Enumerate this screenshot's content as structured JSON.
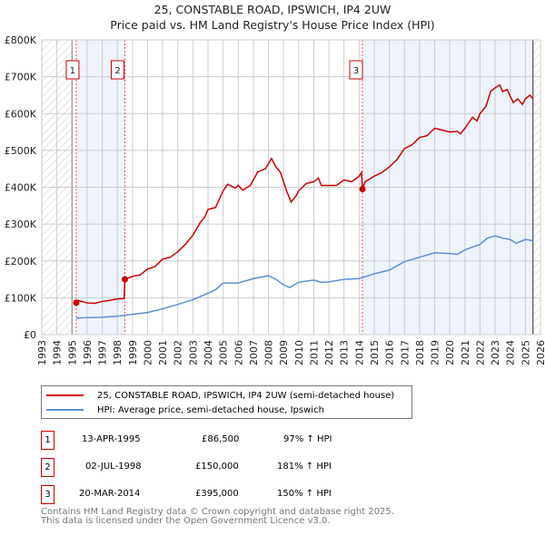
{
  "title": "25, CONSTABLE ROAD, IPSWICH, IP4 2UW",
  "subtitle": "Price paid vs. HM Land Registry's House Price Index (HPI)",
  "chart_data": {
    "type": "line",
    "title": "25, CONSTABLE ROAD, IPSWICH, IP4 2UW",
    "subtitle": "Price paid vs. HM Land Registry's House Price Index (HPI)",
    "xlim": [
      1993,
      2026
    ],
    "ylim": [
      0,
      800000
    ],
    "x_ticks": [
      "1993",
      "1994",
      "1995",
      "1996",
      "1997",
      "1998",
      "1999",
      "2000",
      "2001",
      "2002",
      "2003",
      "2004",
      "2005",
      "2006",
      "2007",
      "2008",
      "2009",
      "2010",
      "2011",
      "2012",
      "2013",
      "2014",
      "2015",
      "2016",
      "2017",
      "2018",
      "2019",
      "2020",
      "2021",
      "2022",
      "2023",
      "2024",
      "2025",
      "2026"
    ],
    "y_ticks": [
      {
        "v": 0,
        "label": "£0"
      },
      {
        "v": 100000,
        "label": "£100K"
      },
      {
        "v": 200000,
        "label": "£200K"
      },
      {
        "v": 300000,
        "label": "£300K"
      },
      {
        "v": 400000,
        "label": "£400K"
      },
      {
        "v": 500000,
        "label": "£500K"
      },
      {
        "v": 600000,
        "label": "£600K"
      },
      {
        "v": 700000,
        "label": "£700K"
      },
      {
        "v": 800000,
        "label": "£800K"
      }
    ],
    "grid": true,
    "hatched_ranges": [
      [
        1993,
        1995
      ],
      [
        2025.5,
        2026
      ]
    ],
    "shaded_ranges": [
      [
        1995.28,
        1998.5
      ],
      [
        2014.22,
        2025.5
      ]
    ],
    "series": [
      {
        "name": "25, CONSTABLE ROAD, IPSWICH, IP4 2UW (semi-detached house)",
        "color": "#cc0000",
        "x": [
          1995.28,
          1995.4,
          1996,
          1996.5,
          1997,
          1997.5,
          1998,
          1998.45,
          1998.5,
          1999,
          1999.5,
          2000,
          2000.5,
          2001,
          2001.5,
          2002,
          2002.5,
          2003,
          2003.5,
          2003.8,
          2004,
          2004.5,
          2005,
          2005.3,
          2005.8,
          2006,
          2006.3,
          2006.8,
          2007,
          2007.3,
          2007.8,
          2008.2,
          2008.5,
          2008.8,
          2009.2,
          2009.5,
          2009.8,
          2010,
          2010.5,
          2011,
          2011.3,
          2011.5,
          2012,
          2012.5,
          2013,
          2013.5,
          2014,
          2014.15,
          2014.22,
          2014.4,
          2015,
          2015.5,
          2016,
          2016.5,
          2017,
          2017.5,
          2018,
          2018.5,
          2019,
          2019.5,
          2020,
          2020.5,
          2020.7,
          2021,
          2021.5,
          2021.8,
          2022,
          2022.4,
          2022.7,
          2023,
          2023.3,
          2023.5,
          2023.8,
          2024.2,
          2024.5,
          2024.8,
          2025,
          2025.3,
          2025.5
        ],
        "y": [
          86500,
          93000,
          86000,
          85000,
          90000,
          93000,
          97000,
          98000,
          150000,
          158000,
          162000,
          178000,
          185000,
          205000,
          210000,
          225000,
          245000,
          270000,
          305000,
          320000,
          340000,
          345000,
          390000,
          408000,
          398000,
          405000,
          392000,
          405000,
          420000,
          442000,
          450000,
          478000,
          455000,
          440000,
          390000,
          360000,
          375000,
          390000,
          410000,
          415000,
          425000,
          405000,
          405000,
          405000,
          420000,
          415000,
          430000,
          440000,
          395000,
          415000,
          430000,
          440000,
          455000,
          475000,
          505000,
          515000,
          535000,
          540000,
          560000,
          555000,
          550000,
          552000,
          545000,
          560000,
          590000,
          580000,
          600000,
          620000,
          660000,
          670000,
          678000,
          660000,
          665000,
          630000,
          640000,
          625000,
          640000,
          650000,
          640000
        ]
      },
      {
        "name": "HPI: Average price, semi-detached house, Ipswich",
        "color": "#5b8fd4",
        "x": [
          1995.28,
          1996,
          1997,
          1998,
          1999,
          2000,
          2001,
          2002,
          2003,
          2004,
          2004.5,
          2005,
          2006,
          2007,
          2008,
          2008.5,
          2009,
          2009.4,
          2010,
          2011,
          2011.5,
          2012,
          2013,
          2014,
          2015,
          2016,
          2017,
          2018,
          2019,
          2020,
          2020.5,
          2021,
          2022,
          2022.5,
          2023,
          2023.5,
          2024,
          2024.4,
          2025,
          2025.5
        ],
        "y": [
          45000,
          46000,
          47000,
          50000,
          55000,
          60000,
          70000,
          82000,
          95000,
          112000,
          122000,
          140000,
          140000,
          152000,
          160000,
          150000,
          135000,
          128000,
          142000,
          148000,
          142000,
          143000,
          150000,
          152000,
          165000,
          175000,
          198000,
          210000,
          222000,
          220000,
          218000,
          230000,
          245000,
          262000,
          268000,
          262000,
          258000,
          248000,
          258000,
          255000
        ]
      }
    ],
    "sales": [
      {
        "label": "1",
        "x": 1995.28,
        "y": 86500
      },
      {
        "label": "2",
        "x": 1998.5,
        "y": 150000
      },
      {
        "label": "3",
        "x": 2014.22,
        "y": 395000
      }
    ],
    "legend_placement": "below"
  },
  "legend": [
    {
      "label": "25, CONSTABLE ROAD, IPSWICH, IP4 2UW (semi-detached house)",
      "color": "#cc0000"
    },
    {
      "label": "HPI: Average price, semi-detached house, Ipswich",
      "color": "#5b8fd4"
    }
  ],
  "transactions": [
    {
      "num": "1",
      "date": "13-APR-1995",
      "price": "£86,500",
      "hpi": "97% ↑ HPI"
    },
    {
      "num": "2",
      "date": "02-JUL-1998",
      "price": "£150,000",
      "hpi": "181% ↑ HPI"
    },
    {
      "num": "3",
      "date": "20-MAR-2014",
      "price": "£395,000",
      "hpi": "150% ↑ HPI"
    }
  ],
  "footer": {
    "line1": "Contains HM Land Registry data © Crown copyright and database right 2025.",
    "line2": "This data is licensed under the Open Government Licence v3.0."
  }
}
